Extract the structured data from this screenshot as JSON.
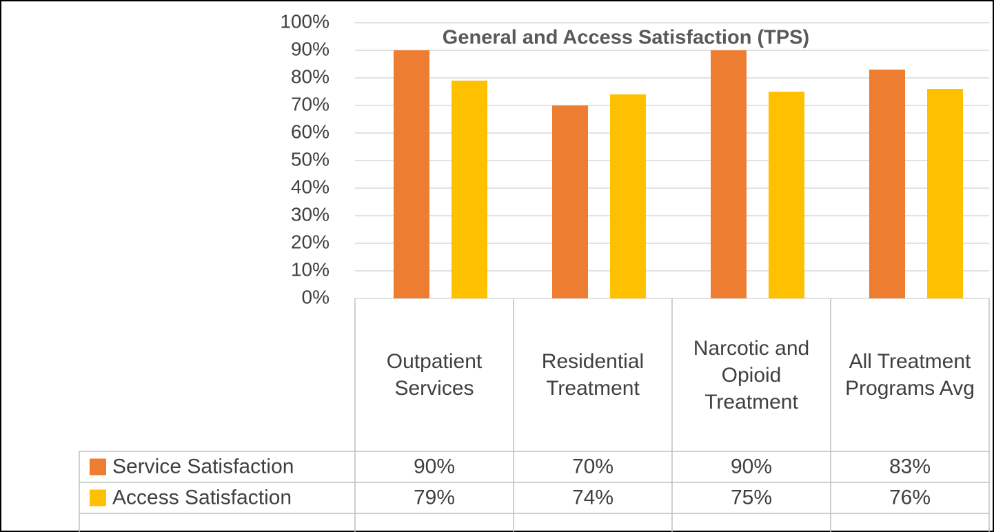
{
  "chart_data": {
    "type": "bar",
    "title": "General and Access Satisfaction (TPS)",
    "categories": [
      "Outpatient Services",
      "Residential Treatment",
      "Narcotic and Opioid Treatment",
      "All Treatment Programs Avg"
    ],
    "series": [
      {
        "name": "Service Satisfaction",
        "color": "#ED7D31",
        "values": [
          90,
          70,
          90,
          83
        ],
        "value_labels": [
          "90%",
          "70%",
          "90%",
          "83%"
        ]
      },
      {
        "name": "Access Satisfaction",
        "color": "#FFC000",
        "values": [
          79,
          74,
          75,
          76
        ],
        "value_labels": [
          "79%",
          "74%",
          "75%",
          "76%"
        ]
      }
    ],
    "ylim": [
      0,
      100
    ],
    "yticks": [
      {
        "value": 0,
        "label": "0%"
      },
      {
        "value": 10,
        "label": "10%"
      },
      {
        "value": 20,
        "label": "20%"
      },
      {
        "value": 30,
        "label": "30%"
      },
      {
        "value": 40,
        "label": "40%"
      },
      {
        "value": 50,
        "label": "50%"
      },
      {
        "value": 60,
        "label": "60%"
      },
      {
        "value": 70,
        "label": "70%"
      },
      {
        "value": 80,
        "label": "80%"
      },
      {
        "value": 90,
        "label": "90%"
      },
      {
        "value": 100,
        "label": "100%"
      }
    ],
    "grid": true
  }
}
